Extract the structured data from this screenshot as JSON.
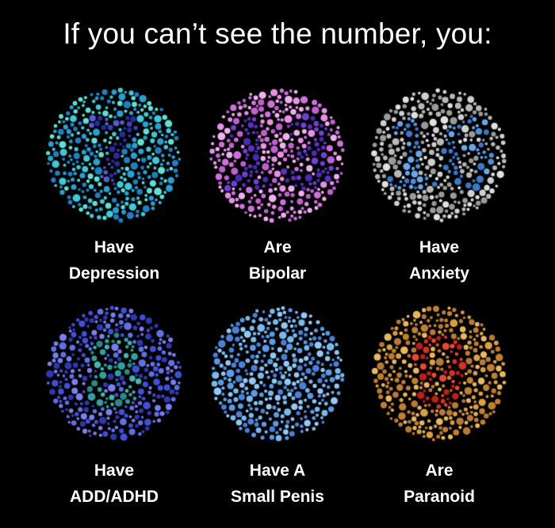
{
  "title": "If you can’t see the number, you:",
  "plates": [
    {
      "number": "7",
      "line1": "Have",
      "line2": "Depression",
      "bg": [
        "#3ec8d8",
        "#2a9fd0",
        "#5fe0d8",
        "#1f7fc0"
      ],
      "fg": [
        "#3a3fb8",
        "#5060d0",
        "#2a2a9a"
      ]
    },
    {
      "number": "13",
      "line1": "Are",
      "line2": "Bipolar",
      "bg": [
        "#e890e8",
        "#d070e0",
        "#f0b0f0",
        "#c060d0"
      ],
      "fg": [
        "#5a30c0",
        "#7040d0",
        "#4a2ab0"
      ]
    },
    {
      "number": "16",
      "line1": "Have",
      "line2": "Anxiety",
      "bg": [
        "#b8b8b8",
        "#cfcfcf",
        "#9a9a9a",
        "#e0e0e0"
      ],
      "fg": [
        "#5090d8",
        "#68a8e8",
        "#3a78c8"
      ]
    },
    {
      "number": "8",
      "line1": "Have",
      "line2": "ADD/ADHD",
      "bg": [
        "#4050d8",
        "#6070e8",
        "#3038b0",
        "#7a80f0"
      ],
      "fg": [
        "#30a0a0",
        "#40b8b0",
        "#2a8888"
      ]
    },
    {
      "number": "",
      "line1": "Have A",
      "line2": "Small Penis",
      "bg": [
        "#5a9ae8",
        "#7ab8f0",
        "#4a80d8",
        "#90c8f8"
      ],
      "fg": [
        "#5a9ae8"
      ]
    },
    {
      "number": "9",
      "line1": "Are",
      "line2": "Paranoid",
      "bg": [
        "#d8a040",
        "#e8b860",
        "#c08030",
        "#b87838"
      ],
      "fg": [
        "#d83020",
        "#e84830",
        "#b82018"
      ]
    }
  ]
}
